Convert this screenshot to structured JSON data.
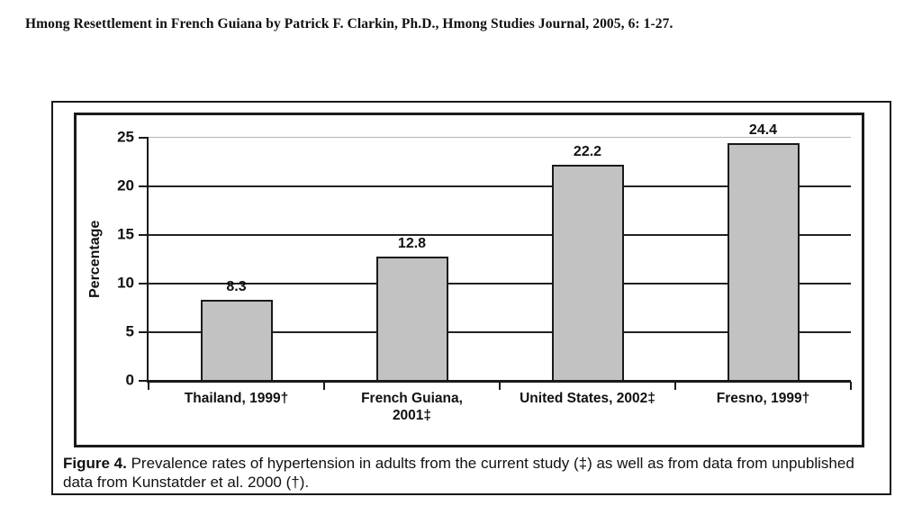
{
  "header": {
    "citation": "Hmong Resettlement in French Guiana by Patrick F. Clarkin, Ph.D., Hmong Studies Journal, 2005, 6: 1-27."
  },
  "caption": {
    "label": "Figure 4.",
    "text": "Prevalence rates of hypertension in adults from the current study (‡) as well as from data from unpublished data from Kunstatder et al. 2000 (†)."
  },
  "chart_data": {
    "type": "bar",
    "title": "",
    "categories": [
      "Thailand, 1999†",
      "French Guiana,\n2001‡",
      "United States, 2002‡",
      "Fresno, 1999†"
    ],
    "values": [
      8.3,
      12.8,
      22.2,
      24.4
    ],
    "value_labels": [
      "8.3",
      "12.8",
      "22.2",
      "24.4"
    ],
    "xlabel": "",
    "ylabel": "Percentage",
    "ylim": [
      0,
      25
    ],
    "yticks": [
      0,
      5,
      10,
      15,
      20,
      25
    ],
    "grid": "horizontal",
    "legend_position": "none",
    "colors": {
      "bar_fill": "#c2c2c2",
      "bar_border": "#1a1a1a",
      "gridline": "#222222",
      "top_gridline": "#b5b5b5",
      "axis": "#1a1a1a"
    }
  }
}
